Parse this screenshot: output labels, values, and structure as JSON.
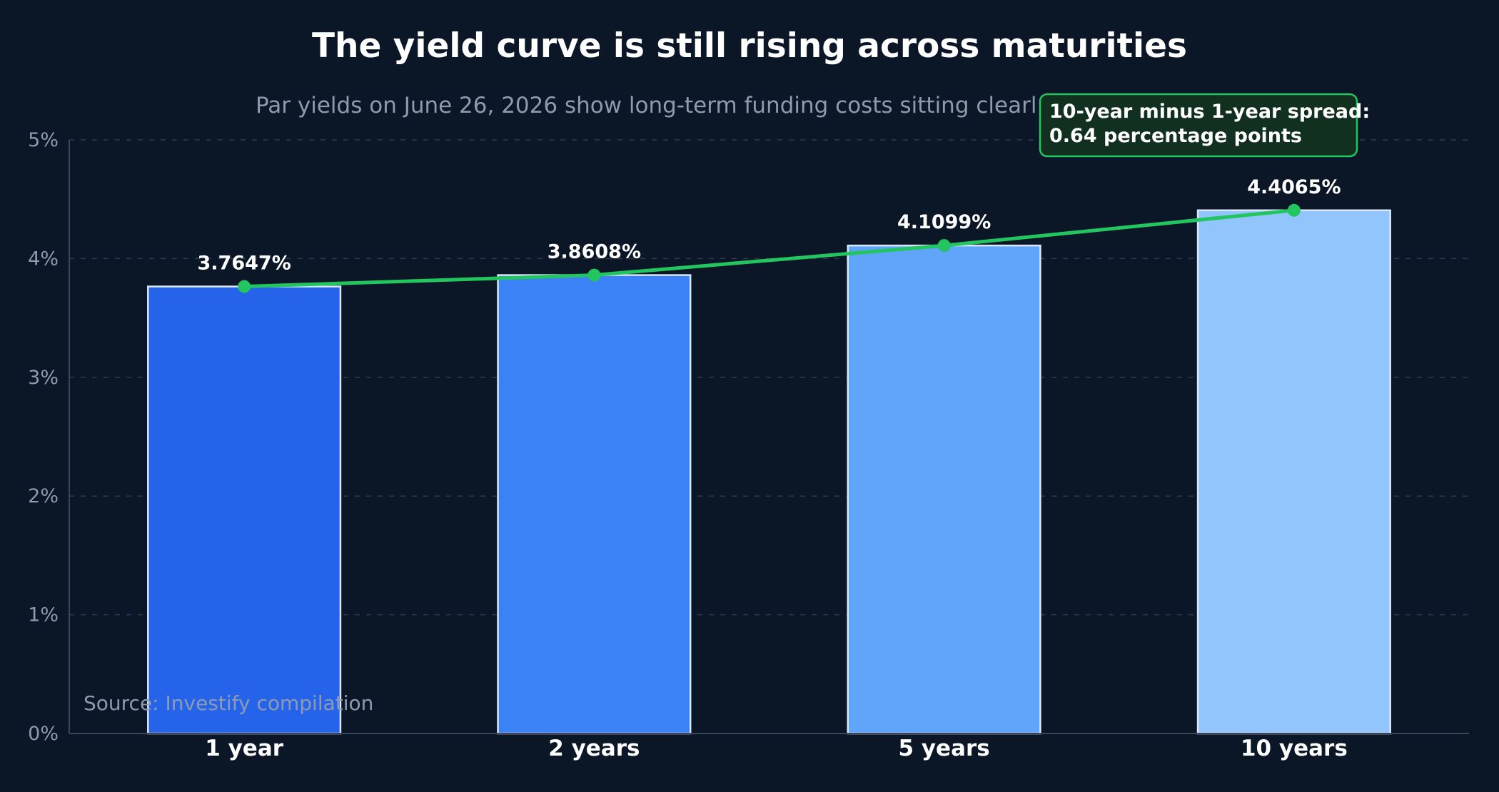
{
  "chart_data": {
    "type": "bar",
    "title": "The yield curve is still rising across maturities",
    "subtitle": "Par yields on June 26, 2026 show long-term funding costs sitting clearl",
    "categories": [
      "1 year",
      "2 years",
      "5 years",
      "10 years"
    ],
    "values": [
      3.7647,
      3.8608,
      4.1099,
      4.4065
    ],
    "value_labels": [
      "3.7647%",
      "3.8608%",
      "4.1099%",
      "4.4065%"
    ],
    "overlay_line": {
      "type": "line",
      "values": [
        3.7647,
        3.8608,
        4.1099,
        4.4065
      ],
      "color": "#22c55e"
    },
    "ylim": [
      0,
      5
    ],
    "yticks": [
      0,
      1,
      2,
      3,
      4,
      5
    ],
    "ytick_labels": [
      "0%",
      "1%",
      "2%",
      "3%",
      "4%",
      "5%"
    ],
    "xlabel": "",
    "ylabel": "",
    "grid": true,
    "bar_colors": [
      "#2563eb",
      "#3b82f6",
      "#60a5fa",
      "#93c5fd"
    ],
    "annotation": {
      "line1": "10-year minus 1-year spread:",
      "line2": "0.64 percentage points"
    },
    "source": "Source: Investify compilation"
  },
  "colors": {
    "background": "#0b1627",
    "grid": "#2f3b4f",
    "axis": "#3a4658",
    "bar_edge": "#dbe8ff",
    "annotation_fill": "#12301f",
    "annotation_border": "#22c55e"
  }
}
